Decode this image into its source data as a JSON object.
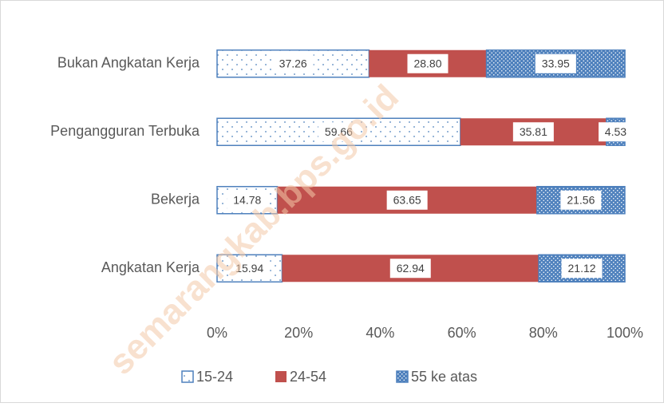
{
  "chart_data": {
    "type": "stacked_bar_horizontal",
    "categories": [
      "Bukan Angkatan Kerja",
      "Pengangguran Terbuka",
      "Bekerja",
      "Angkatan Kerja"
    ],
    "series": [
      {
        "name": "15-24",
        "color": "#4f81bd",
        "pattern": "sparse-dots",
        "values": [
          37.26,
          59.66,
          14.78,
          15.94
        ],
        "value_labels": [
          "37.26",
          "59.66",
          "14.78",
          "15.94"
        ]
      },
      {
        "name": "24-54",
        "color": "#c0504d",
        "values": [
          28.8,
          35.81,
          63.65,
          62.94
        ],
        "value_labels": [
          "28.80",
          "35.81",
          "63.65",
          "62.94"
        ]
      },
      {
        "name": "55 ke atas",
        "color": "#4f81bd",
        "pattern": "dense-dots",
        "values": [
          33.95,
          4.53,
          21.56,
          21.12
        ],
        "value_labels": [
          "33.95",
          "4.53",
          "21.56",
          "21.12"
        ]
      }
    ],
    "xlim": [
      0,
      100
    ],
    "xticks": [
      {
        "value": 0,
        "label": "0%"
      },
      {
        "value": 20,
        "label": "20%"
      },
      {
        "value": 40,
        "label": "40%"
      },
      {
        "value": 60,
        "label": "60%"
      },
      {
        "value": 80,
        "label": "80%"
      },
      {
        "value": 100,
        "label": "100%"
      }
    ],
    "legend": "bottom",
    "watermark": "semarangkab.bps.go.id"
  }
}
